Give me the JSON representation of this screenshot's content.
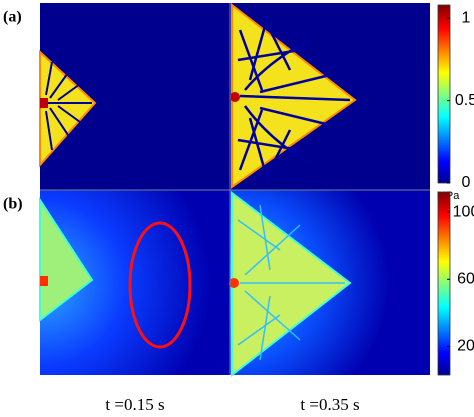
{
  "panels": [
    {
      "label": "(a)",
      "colorbar": {
        "lim": [
          0,
          1.08
        ],
        "ticks": [
          1,
          0.5,
          0
        ]
      }
    },
    {
      "label": "(b)",
      "colorbar": {
        "unit": "MPa",
        "lim": [
          3,
          112
        ],
        "ticks": [
          100,
          60,
          20
        ]
      }
    }
  ],
  "time_labels": [
    "t =0.15 s",
    "t =0.35 s"
  ]
}
